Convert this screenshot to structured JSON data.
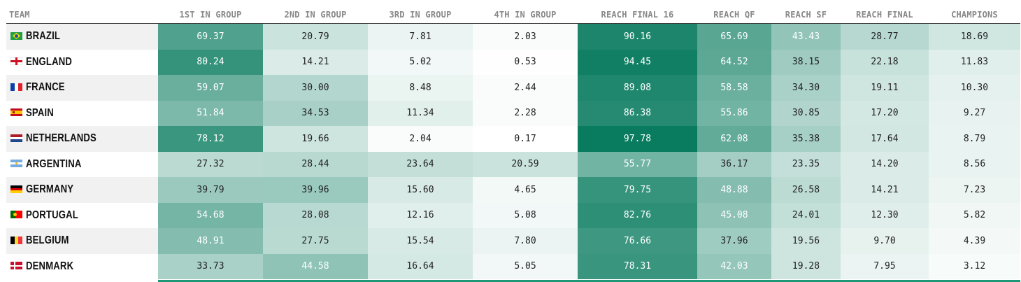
{
  "columns": [
    "TEAM",
    "1ST IN GROUP",
    "2ND IN GROUP",
    "3RD IN GROUP",
    "4TH IN GROUP",
    "REACH FINAL 16",
    "REACH QF",
    "REACH SF",
    "REACH FINAL",
    "CHAMPIONS"
  ],
  "colors": {
    "heat_low": "#ffffff",
    "heat_high": "#03785b"
  },
  "rows": [
    {
      "team": "BRAZIL",
      "flag_icon": "brazil-flag-icon",
      "values": [
        69.37,
        20.79,
        7.81,
        2.03,
        90.16,
        65.69,
        43.43,
        28.77,
        18.69
      ]
    },
    {
      "team": "ENGLAND",
      "flag_icon": "england-flag-icon",
      "values": [
        80.24,
        14.21,
        5.02,
        0.53,
        94.45,
        64.52,
        38.15,
        22.18,
        11.83
      ]
    },
    {
      "team": "FRANCE",
      "flag_icon": "france-flag-icon",
      "values": [
        59.07,
        30.0,
        8.48,
        2.44,
        89.08,
        58.58,
        34.3,
        19.11,
        10.3
      ]
    },
    {
      "team": "SPAIN",
      "flag_icon": "spain-flag-icon",
      "values": [
        51.84,
        34.53,
        11.34,
        2.28,
        86.38,
        55.86,
        30.85,
        17.2,
        9.27
      ]
    },
    {
      "team": "NETHERLANDS",
      "flag_icon": "netherlands-flag-icon",
      "values": [
        78.12,
        19.66,
        2.04,
        0.17,
        97.78,
        62.08,
        35.38,
        17.64,
        8.79
      ]
    },
    {
      "team": "ARGENTINA",
      "flag_icon": "argentina-flag-icon",
      "values": [
        27.32,
        28.44,
        23.64,
        20.59,
        55.77,
        36.17,
        23.35,
        14.2,
        8.56
      ]
    },
    {
      "team": "GERMANY",
      "flag_icon": "germany-flag-icon",
      "values": [
        39.79,
        39.96,
        15.6,
        4.65,
        79.75,
        48.88,
        26.58,
        14.21,
        7.23
      ]
    },
    {
      "team": "PORTUGAL",
      "flag_icon": "portugal-flag-icon",
      "values": [
        54.68,
        28.08,
        12.16,
        5.08,
        82.76,
        45.08,
        24.01,
        12.3,
        5.82
      ]
    },
    {
      "team": "BELGIUM",
      "flag_icon": "belgium-flag-icon",
      "values": [
        48.91,
        27.75,
        15.54,
        7.8,
        76.66,
        37.96,
        19.56,
        9.7,
        4.39
      ]
    },
    {
      "team": "DENMARK",
      "flag_icon": "denmark-flag-icon",
      "values": [
        33.73,
        44.58,
        16.64,
        5.05,
        78.31,
        42.03,
        19.28,
        7.95,
        3.12
      ]
    }
  ]
}
